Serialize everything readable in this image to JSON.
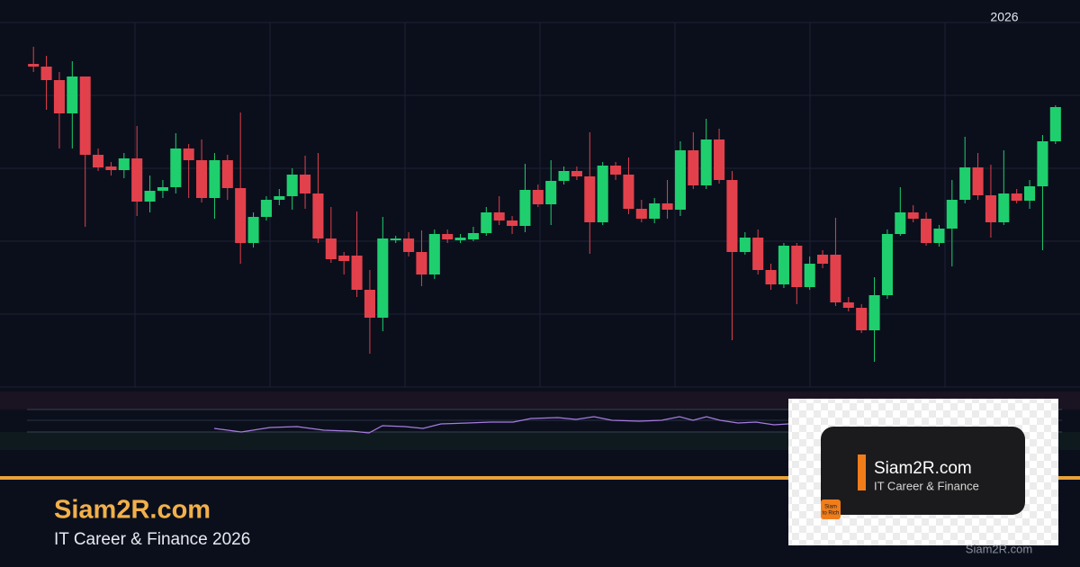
{
  "chart_data": {
    "type": "candlestick",
    "annotation": "2026",
    "ylim": [
      0,
      405
    ],
    "up_color": "#1fcf6e",
    "down_color": "#e2414c",
    "open": [
      359,
      356,
      341,
      304,
      345,
      258,
      245,
      241,
      254,
      206,
      218,
      222,
      265,
      252,
      210,
      252,
      221,
      160,
      189,
      208,
      212,
      236,
      215,
      165,
      146,
      146,
      108,
      77,
      163,
      165,
      150,
      125,
      170,
      163,
      164,
      171,
      194,
      185,
      179,
      219,
      203,
      229,
      240,
      234,
      183,
      246,
      236,
      198,
      187,
      204,
      197,
      263,
      224,
      275,
      230,
      150,
      166,
      130,
      114,
      157,
      111,
      147,
      147,
      94,
      88,
      63,
      102,
      170,
      194,
      187,
      160,
      176,
      208,
      244,
      213,
      183,
      215,
      207,
      223,
      273
    ],
    "high": [
      378,
      368,
      350,
      362,
      345,
      265,
      250,
      260,
      290,
      235,
      230,
      282,
      270,
      275,
      260,
      258,
      305,
      194,
      212,
      220,
      243,
      257,
      260,
      200,
      150,
      195,
      130,
      189,
      168,
      172,
      174,
      175,
      175,
      170,
      178,
      200,
      212,
      190,
      248,
      225,
      252,
      245,
      245,
      283,
      250,
      250,
      255,
      208,
      210,
      230,
      273,
      283,
      298,
      287,
      240,
      172,
      175,
      137,
      160,
      160,
      145,
      152,
      188,
      100,
      92,
      122,
      175,
      222,
      202,
      194,
      180,
      230,
      278,
      260,
      247,
      263,
      220,
      230,
      280,
      313
    ],
    "low": [
      350,
      308,
      265,
      265,
      178,
      240,
      235,
      232,
      190,
      194,
      210,
      215,
      210,
      205,
      187,
      208,
      137,
      155,
      185,
      202,
      197,
      198,
      160,
      138,
      125,
      100,
      37,
      62,
      160,
      145,
      112,
      120,
      160,
      160,
      162,
      168,
      180,
      170,
      172,
      200,
      180,
      225,
      230,
      148,
      180,
      230,
      192,
      183,
      182,
      187,
      190,
      220,
      220,
      226,
      52,
      147,
      125,
      108,
      110,
      92,
      108,
      132,
      90,
      84,
      60,
      28,
      98,
      168,
      183,
      157,
      156,
      134,
      204,
      208,
      166,
      180,
      204,
      198,
      152,
      270
    ],
    "close": [
      356,
      341,
      304,
      345,
      258,
      244,
      241,
      254,
      206,
      218,
      222,
      265,
      252,
      210,
      252,
      221,
      160,
      189,
      208,
      212,
      236,
      215,
      165,
      142,
      140,
      108,
      77,
      165,
      165,
      150,
      125,
      170,
      164,
      166,
      171,
      194,
      185,
      179,
      219,
      203,
      229,
      240,
      234,
      183,
      246,
      236,
      198,
      187,
      204,
      197,
      263,
      224,
      275,
      230,
      150,
      166,
      130,
      114,
      157,
      111,
      137,
      137,
      94,
      88,
      63,
      102,
      170,
      194,
      187,
      160,
      176,
      208,
      244,
      213,
      183,
      215,
      207,
      223,
      273,
      311
    ]
  },
  "branding": {
    "title": "Siam2R.com",
    "subtitle": "IT Career & Finance 2026",
    "watermark": "Siam2R.com"
  },
  "logo": {
    "name": "Siam2R.com",
    "tagline": "IT Career & Finance",
    "badge": [
      "Siam",
      "to Rich"
    ]
  }
}
